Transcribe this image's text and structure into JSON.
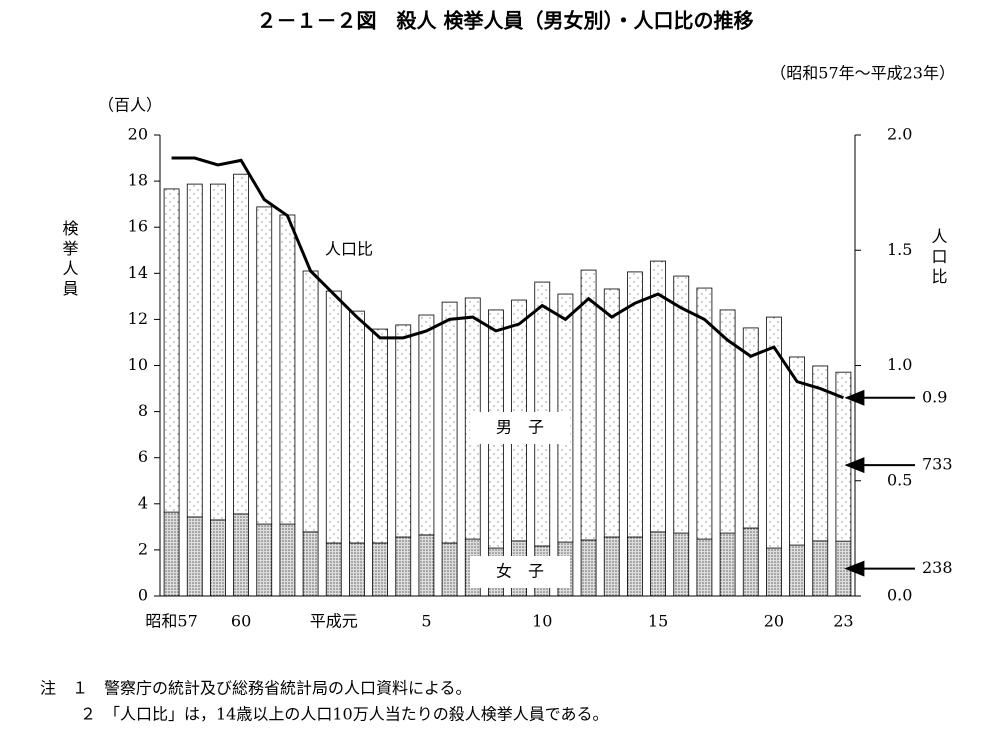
{
  "chart_data": {
    "type": "bar-line",
    "title": "２－１－２図　殺人 検挙人員（男女別）・人口比の推移",
    "subtitle": "（昭和57年～平成23年）",
    "y_unit": "（百人）",
    "ylabel": "検挙人員",
    "y2label": "人口比",
    "line_label": "人口比",
    "categories": [
      "昭和57",
      null,
      null,
      "60",
      null,
      null,
      null,
      "平成元",
      null,
      null,
      null,
      "5",
      null,
      null,
      null,
      null,
      "10",
      null,
      null,
      null,
      null,
      "15",
      null,
      null,
      null,
      null,
      "20",
      null,
      null,
      "23"
    ],
    "ylim": [
      0,
      20
    ],
    "yticks": [
      0,
      2,
      4,
      6,
      8,
      10,
      12,
      14,
      16,
      18,
      20
    ],
    "y2lim": [
      0,
      2
    ],
    "y2ticks": [
      {
        "value": 0,
        "label": "0.0"
      },
      {
        "value": 0.5,
        "label": "0.5"
      },
      {
        "value": 1,
        "label": "1.0"
      },
      {
        "value": 1.5,
        "label": "1.5"
      },
      {
        "value": 2,
        "label": "2.0"
      }
    ],
    "series": [
      {
        "name": "女　子",
        "kind": "bar",
        "color": "#999999",
        "end_label": "238",
        "values": [
          3.64,
          3.43,
          3.3,
          3.56,
          3.12,
          3.12,
          2.78,
          2.3,
          2.3,
          2.3,
          2.56,
          2.65,
          2.3,
          2.47,
          2.08,
          2.39,
          2.17,
          2.34,
          2.43,
          2.56,
          2.56,
          2.78,
          2.73,
          2.47,
          2.73,
          2.95,
          2.08,
          2.21,
          2.39,
          2.38
        ]
      },
      {
        "name": "男　子",
        "kind": "bar",
        "color": "#bbbbbb",
        "end_label": "733",
        "values": [
          14.02,
          14.44,
          14.57,
          14.74,
          13.76,
          13.41,
          11.32,
          10.93,
          10.06,
          9.28,
          9.2,
          9.54,
          10.45,
          10.46,
          10.33,
          10.45,
          11.45,
          10.76,
          11.71,
          10.76,
          11.5,
          11.75,
          11.15,
          10.89,
          9.68,
          8.68,
          10.02,
          8.16,
          7.59,
          7.33
        ]
      },
      {
        "name": "人口比",
        "kind": "line",
        "axis": "y2",
        "color": "#000000",
        "end_label": "0.9",
        "values": [
          1.9,
          1.9,
          1.87,
          1.89,
          1.72,
          1.65,
          1.41,
          1.31,
          1.21,
          1.12,
          1.12,
          1.15,
          1.2,
          1.21,
          1.15,
          1.18,
          1.26,
          1.2,
          1.29,
          1.21,
          1.27,
          1.31,
          1.25,
          1.2,
          1.11,
          1.04,
          1.08,
          0.93,
          0.9,
          0.86
        ]
      }
    ],
    "notes": [
      "注　１　警察庁の統計及び総務省統計局の人口資料による。",
      "２　「人口比」は，14歳以上の人口10万人当たりの殺人検挙人員である。"
    ]
  }
}
